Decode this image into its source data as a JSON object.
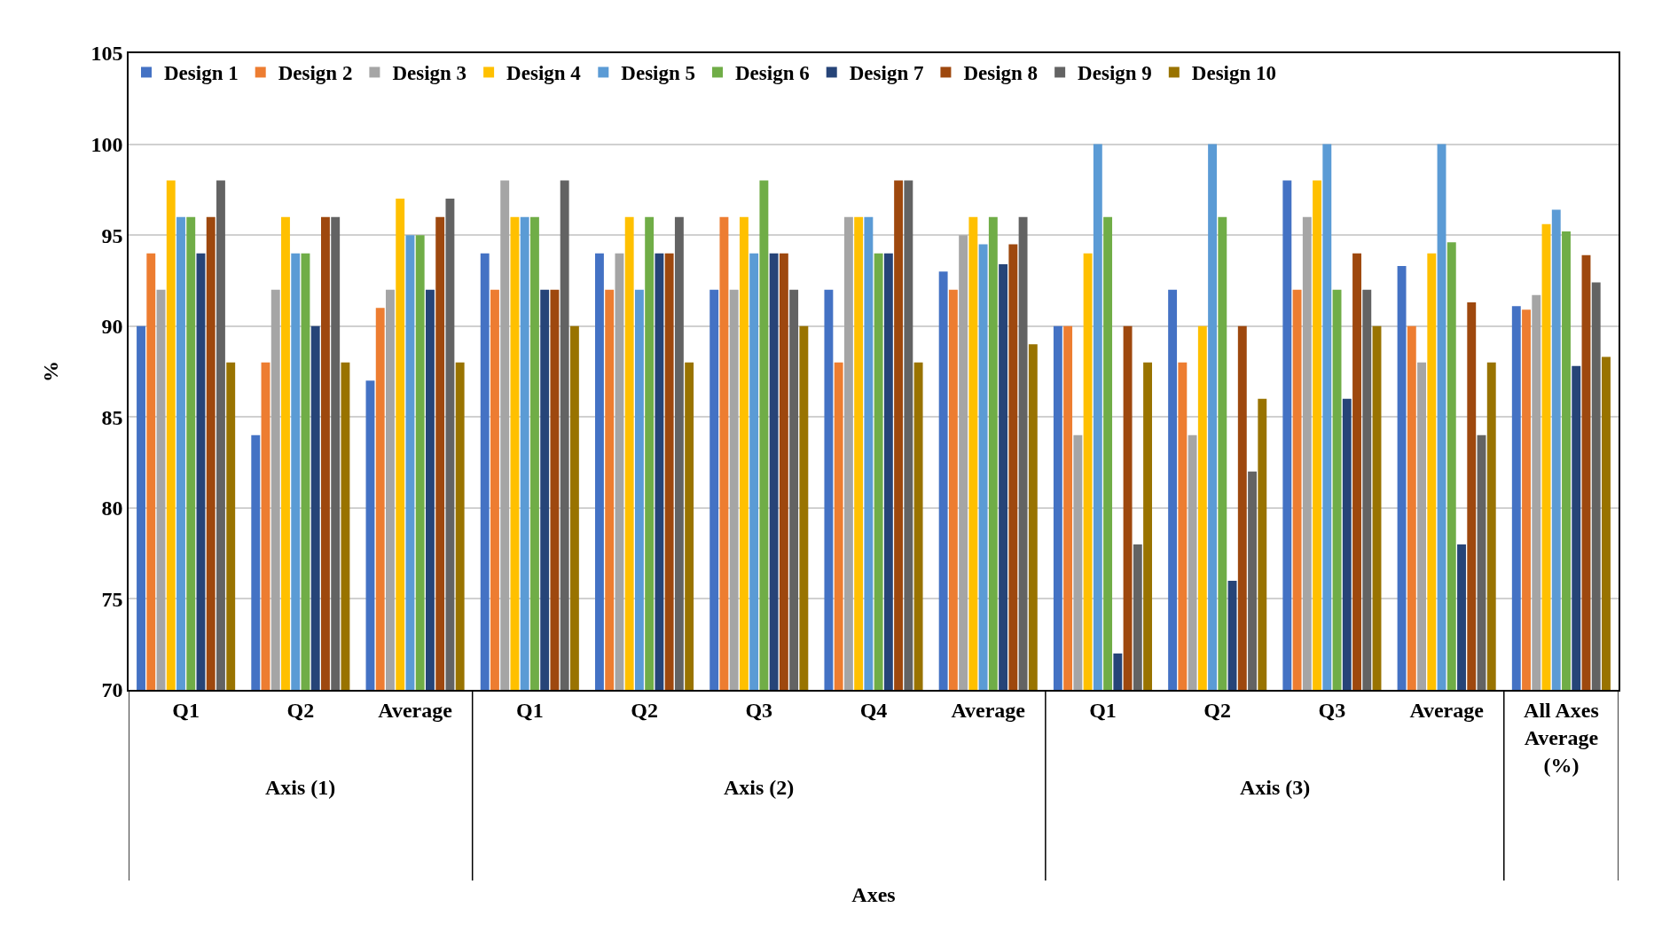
{
  "chart_data": {
    "type": "bar",
    "xlabel": "Axes",
    "ylabel": "%",
    "categories": [
      "Q1",
      "Q2",
      "Average",
      "Q1",
      "Q2",
      "Q3",
      "Q4",
      "Average",
      "Q1",
      "Q2",
      "Q3",
      "Average",
      "All Axes Average (%)"
    ],
    "annotations": [
      "Axis (1)",
      "Axis (2)",
      "Axis (3)"
    ],
    "ylim": [
      70,
      105
    ],
    "yticks": [
      70,
      75,
      80,
      85,
      90,
      95,
      100,
      105
    ],
    "grid": "y",
    "legend": "top",
    "series": [
      {
        "name": "Design 1",
        "color": "#4472c4",
        "values": [
          90,
          84,
          87,
          94,
          94,
          92,
          92,
          93,
          90,
          92,
          98,
          93.3,
          91.1
        ]
      },
      {
        "name": "Design 2",
        "color": "#ed7d31",
        "values": [
          94,
          88,
          91,
          92,
          92,
          96,
          88,
          92,
          90,
          88,
          92,
          90,
          90.9
        ]
      },
      {
        "name": "Design 3",
        "color": "#a5a5a5",
        "values": [
          92,
          92,
          92,
          98,
          94,
          92,
          96,
          95,
          84,
          84,
          96,
          88,
          91.7
        ]
      },
      {
        "name": "Design 4",
        "color": "#ffc000",
        "values": [
          98,
          96,
          97,
          96,
          96,
          96,
          96,
          96,
          94,
          90,
          98,
          94,
          95.6
        ]
      },
      {
        "name": "Design 5",
        "color": "#5b9bd5",
        "values": [
          96,
          94,
          95,
          96,
          92,
          94,
          96,
          94.5,
          100,
          100,
          100,
          100,
          96.4
        ]
      },
      {
        "name": "Design 6",
        "color": "#70ad47",
        "values": [
          96,
          94,
          95,
          96,
          96,
          98,
          94,
          96,
          96,
          96,
          92,
          94.6,
          95.2
        ]
      },
      {
        "name": "Design 7",
        "color": "#264478",
        "values": [
          94,
          90,
          92,
          92,
          94,
          94,
          94,
          93.4,
          72,
          76,
          86,
          78,
          87.8
        ]
      },
      {
        "name": "Design 8",
        "color": "#9e480e",
        "values": [
          96,
          96,
          96,
          92,
          94,
          94,
          98,
          94.5,
          90,
          90,
          94,
          91.3,
          93.9
        ]
      },
      {
        "name": "Design 9",
        "color": "#636363",
        "values": [
          98,
          96,
          97,
          98,
          96,
          92,
          98,
          96,
          78,
          82,
          92,
          84,
          92.4
        ]
      },
      {
        "name": "Design 10",
        "color": "#997300",
        "values": [
          88,
          88,
          88,
          90,
          88,
          90,
          88,
          89,
          88,
          86,
          90,
          88,
          88.3
        ]
      }
    ]
  }
}
